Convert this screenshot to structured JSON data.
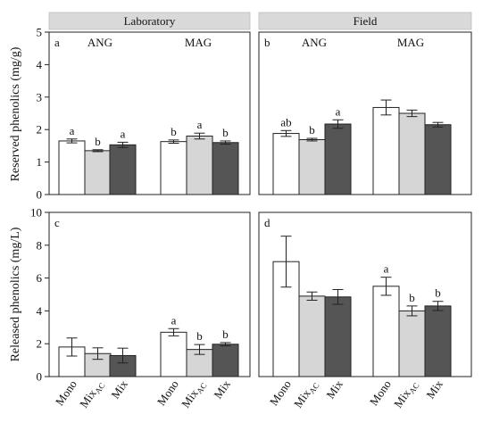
{
  "figure": {
    "strips": [
      "Laboratory",
      "Field"
    ],
    "ylabel_top": "Reserved phenolics  (mg/g)",
    "ylabel_bottom": "Released  phenolics (mg/L)",
    "x_tick_labels": [
      "Mono",
      "MixAC",
      "Mix",
      "Mono",
      "MixAC",
      "Mix"
    ],
    "bar_colors": {
      "Mono": "#ffffff",
      "MixAC": "#d6d6d6",
      "Mix": "#555555"
    }
  },
  "chart_data": [
    {
      "type": "bar",
      "panel": "a",
      "strip": "Laboratory",
      "groups": [
        "ANG",
        "MAG"
      ],
      "categories": [
        "Mono",
        "MixAC",
        "Mix"
      ],
      "ylabel": "Reserved phenolics  (mg/g)",
      "ylim": [
        0,
        5
      ],
      "yticks": [
        0,
        1,
        2,
        3,
        4,
        5
      ],
      "series": [
        {
          "values": [
            1.65,
            1.35,
            1.53
          ],
          "errors": [
            0.06,
            0.03,
            0.08
          ],
          "letters": [
            "a",
            "b",
            "a"
          ]
        },
        {
          "values": [
            1.63,
            1.8,
            1.6
          ],
          "errors": [
            0.05,
            0.09,
            0.05
          ],
          "letters": [
            "b",
            "a",
            "b"
          ]
        }
      ]
    },
    {
      "type": "bar",
      "panel": "b",
      "strip": "Field",
      "groups": [
        "ANG",
        "MAG"
      ],
      "categories": [
        "Mono",
        "MixAC",
        "Mix"
      ],
      "ylim": [
        0,
        5
      ],
      "series": [
        {
          "values": [
            1.88,
            1.69,
            2.17
          ],
          "errors": [
            0.09,
            0.04,
            0.13
          ],
          "letters": [
            "ab",
            "b",
            "a"
          ]
        },
        {
          "values": [
            2.68,
            2.5,
            2.15
          ],
          "errors": [
            0.23,
            0.1,
            0.07
          ],
          "letters": [
            "",
            "",
            ""
          ]
        }
      ]
    },
    {
      "type": "bar",
      "panel": "c",
      "strip": "Laboratory",
      "groups": [
        "ANG",
        "MAG"
      ],
      "categories": [
        "Mono",
        "MixAC",
        "Mix"
      ],
      "ylabel": "Released  phenolics (mg/L)",
      "ylim": [
        0,
        10
      ],
      "yticks": [
        0,
        2,
        4,
        6,
        8,
        10
      ],
      "series": [
        {
          "values": [
            1.8,
            1.4,
            1.28
          ],
          "errors": [
            0.55,
            0.35,
            0.45
          ],
          "letters": [
            "",
            "",
            ""
          ]
        },
        {
          "values": [
            2.7,
            1.65,
            1.97
          ],
          "errors": [
            0.22,
            0.3,
            0.1
          ],
          "letters": [
            "a",
            "b",
            "b"
          ]
        }
      ]
    },
    {
      "type": "bar",
      "panel": "d",
      "strip": "Field",
      "groups": [
        "ANG",
        "MAG"
      ],
      "categories": [
        "Mono",
        "MixAC",
        "Mix"
      ],
      "ylim": [
        0,
        10
      ],
      "series": [
        {
          "values": [
            7.0,
            4.9,
            4.85
          ],
          "errors": [
            1.55,
            0.25,
            0.45
          ],
          "letters": [
            "",
            "",
            ""
          ]
        },
        {
          "values": [
            5.5,
            4.0,
            4.3
          ],
          "errors": [
            0.55,
            0.3,
            0.28
          ],
          "letters": [
            "a",
            "b",
            "b"
          ]
        }
      ]
    }
  ]
}
